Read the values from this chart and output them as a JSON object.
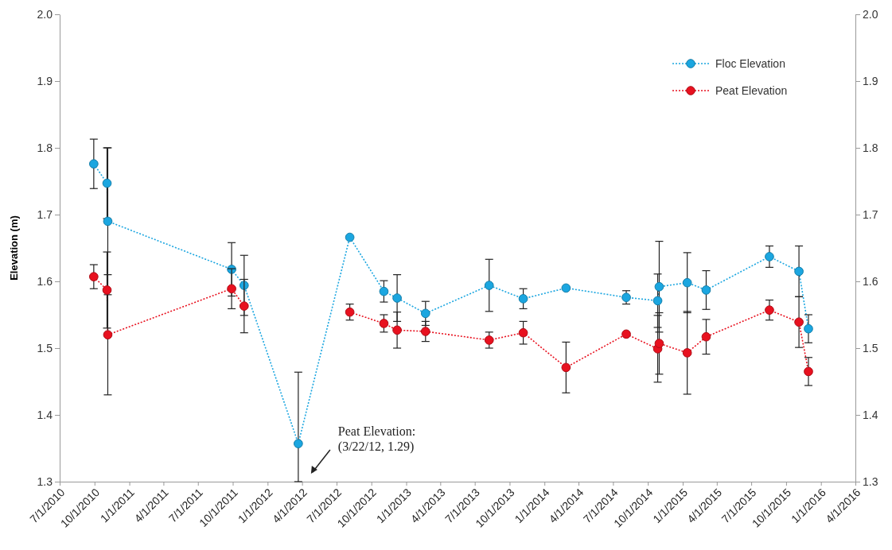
{
  "chart_data": {
    "type": "line",
    "ylabel": "Elevation (m)",
    "x": [
      "2010-09-29",
      "2010-11-03",
      "2010-11-05",
      "2011-09-28",
      "2011-10-31",
      "2012-03-22",
      "2012-08-05",
      "2012-11-03",
      "2012-12-08",
      "2013-02-21",
      "2013-08-08",
      "2013-11-06",
      "2014-02-27",
      "2014-08-05",
      "2014-10-27",
      "2014-10-31",
      "2015-01-13",
      "2015-03-04",
      "2015-08-18",
      "2015-11-04",
      "2015-11-29"
    ],
    "series": [
      {
        "name": "Floc Elevation",
        "color": "#1ba6e0",
        "values": [
          1.776,
          1.747,
          1.69,
          1.618,
          1.594,
          1.357,
          1.666,
          1.585,
          1.575,
          1.552,
          1.594,
          1.574,
          1.59,
          1.576,
          1.571,
          1.592,
          1.598,
          1.587,
          1.637,
          1.615,
          1.529
        ],
        "errors": [
          0.037,
          0.053,
          0.11,
          0.04,
          0.045,
          [
            1.3,
            1.464
          ],
          null,
          0.016,
          0.035,
          0.018,
          0.039,
          0.015,
          null,
          0.01,
          0.04,
          0.068,
          0.045,
          0.029,
          0.016,
          0.038,
          0.021
        ]
      },
      {
        "name": "Peat Elevation",
        "color": "#e8111f",
        "values": [
          1.607,
          1.587,
          1.52,
          1.589,
          1.563,
          null,
          1.554,
          1.537,
          1.527,
          1.525,
          1.512,
          1.523,
          1.471,
          1.521,
          1.499,
          1.507,
          1.493,
          1.517,
          1.557,
          1.539,
          1.465
        ],
        "errors": [
          0.018,
          0.057,
          0.09,
          0.03,
          0.04,
          null,
          0.012,
          0.013,
          0.027,
          0.015,
          0.012,
          0.017,
          0.038,
          null,
          0.05,
          0.046,
          0.062,
          0.026,
          0.015,
          0.038,
          0.021
        ]
      }
    ],
    "xlim": [
      "2010-07-01",
      "2016-04-01"
    ],
    "xticks": [
      {
        "value": "2010-07-01",
        "label": "7/1/2010"
      },
      {
        "value": "2010-10-01",
        "label": "10/1/2010"
      },
      {
        "value": "2011-01-01",
        "label": "1/1/2011"
      },
      {
        "value": "2011-04-01",
        "label": "4/1/2011"
      },
      {
        "value": "2011-07-01",
        "label": "7/1/2011"
      },
      {
        "value": "2011-10-01",
        "label": "10/1/2011"
      },
      {
        "value": "2012-01-01",
        "label": "1/1/2012"
      },
      {
        "value": "2012-04-01",
        "label": "4/1/2012"
      },
      {
        "value": "2012-07-01",
        "label": "7/1/2012"
      },
      {
        "value": "2012-10-01",
        "label": "10/1/2012"
      },
      {
        "value": "2013-01-01",
        "label": "1/1/2013"
      },
      {
        "value": "2013-04-01",
        "label": "4/1/2013"
      },
      {
        "value": "2013-07-01",
        "label": "7/1/2013"
      },
      {
        "value": "2013-10-01",
        "label": "10/1/2013"
      },
      {
        "value": "2014-01-01",
        "label": "1/1/2014"
      },
      {
        "value": "2014-04-01",
        "label": "4/1/2014"
      },
      {
        "value": "2014-07-01",
        "label": "7/1/2014"
      },
      {
        "value": "2014-10-01",
        "label": "10/1/2014"
      },
      {
        "value": "2015-01-01",
        "label": "1/1/2015"
      },
      {
        "value": "2015-04-01",
        "label": "4/1/2015"
      },
      {
        "value": "2015-07-01",
        "label": "7/1/2015"
      },
      {
        "value": "2015-10-01",
        "label": "10/1/2015"
      },
      {
        "value": "2016-01-01",
        "label": "1/1/2016"
      },
      {
        "value": "2016-04-01",
        "label": "4/1/2016"
      }
    ],
    "ylim": [
      1.3,
      2.0
    ],
    "yticks": [
      {
        "value": 1.3,
        "label": "1.3"
      },
      {
        "value": 1.4,
        "label": "1.4"
      },
      {
        "value": 1.5,
        "label": "1.5"
      },
      {
        "value": 1.6,
        "label": "1.6"
      },
      {
        "value": 1.7,
        "label": "1.7"
      },
      {
        "value": 1.8,
        "label": "1.8"
      },
      {
        "value": 1.9,
        "label": "1.9"
      },
      {
        "value": 2.0,
        "label": "2.0"
      }
    ],
    "y2lim": [
      1.3,
      2.0
    ],
    "y2ticks": [
      {
        "value": 1.3,
        "label": "1.3"
      },
      {
        "value": 1.4,
        "label": "1.4"
      },
      {
        "value": 1.5,
        "label": "1.5"
      },
      {
        "value": 1.6,
        "label": "1.6"
      },
      {
        "value": 1.7,
        "label": "1.7"
      },
      {
        "value": 1.8,
        "label": "1.8"
      },
      {
        "value": 1.9,
        "label": "1.9"
      },
      {
        "value": 2.0,
        "label": "2.0"
      }
    ],
    "annotations": [
      "Peat Elevation:\n(3/22/12, 1.29)"
    ],
    "marker": "circle",
    "line_style": "dotted",
    "grid": false,
    "legend": "top right"
  }
}
